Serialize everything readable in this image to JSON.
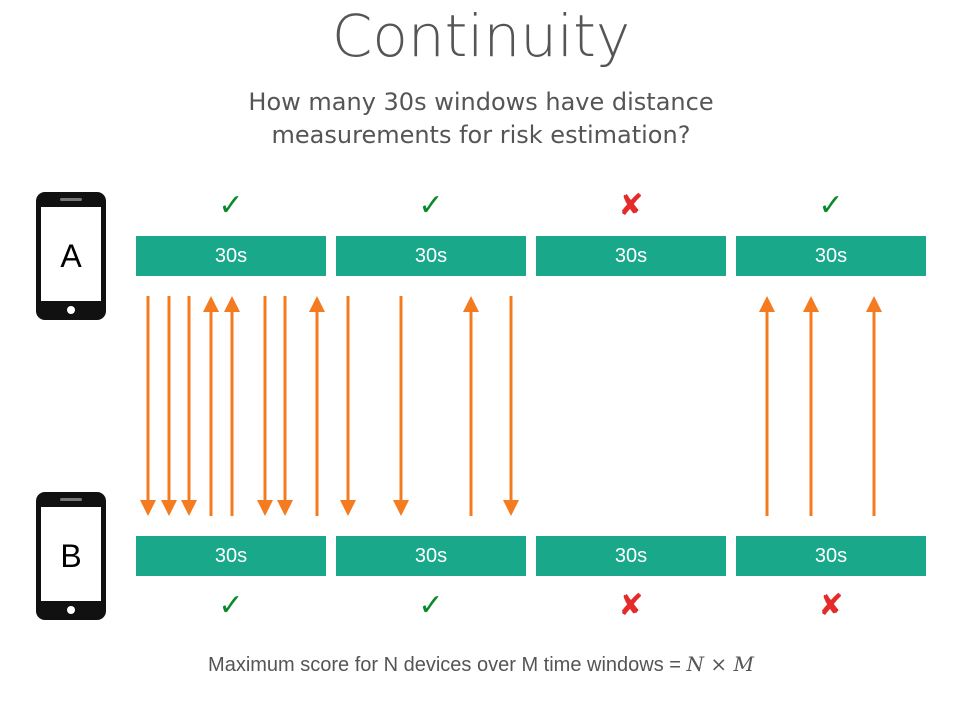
{
  "title": "Continuity",
  "subtitle": {
    "line1": "How many 30s windows have distance",
    "line2": "measurements for risk estimation?"
  },
  "devices": [
    {
      "label": "A",
      "icon": "smartphone-icon"
    },
    {
      "label": "B",
      "icon": "smartphone-icon"
    }
  ],
  "window_label": "30s",
  "rows": {
    "A": {
      "windows": [
        "30s",
        "30s",
        "30s",
        "30s"
      ],
      "status": [
        "ok",
        "ok",
        "bad",
        "ok"
      ]
    },
    "B": {
      "windows": [
        "30s",
        "30s",
        "30s",
        "30s"
      ],
      "status": [
        "ok",
        "ok",
        "bad",
        "bad"
      ]
    }
  },
  "status_glyphs": {
    "ok": "✓",
    "bad": "✘"
  },
  "colors": {
    "window": "#19a98a",
    "arrow": "#f47b20",
    "ok": "#0a8a2a",
    "bad": "#e52a2a"
  },
  "arrows": [
    {
      "window": 1,
      "direction": "down"
    },
    {
      "window": 1,
      "direction": "down"
    },
    {
      "window": 1,
      "direction": "down"
    },
    {
      "window": 1,
      "direction": "up"
    },
    {
      "window": 1,
      "direction": "up"
    },
    {
      "window": 1,
      "direction": "down"
    },
    {
      "window": 1,
      "direction": "down"
    },
    {
      "window": 1,
      "direction": "up"
    },
    {
      "window": 2,
      "direction": "down"
    },
    {
      "window": 2,
      "direction": "down"
    },
    {
      "window": 2,
      "direction": "up"
    },
    {
      "window": 2,
      "direction": "down"
    },
    {
      "window": 4,
      "direction": "up"
    },
    {
      "window": 4,
      "direction": "up"
    },
    {
      "window": 4,
      "direction": "up"
    }
  ],
  "footer": {
    "text": "Maximum score for N devices over M time windows = ",
    "formula": "N × M"
  }
}
